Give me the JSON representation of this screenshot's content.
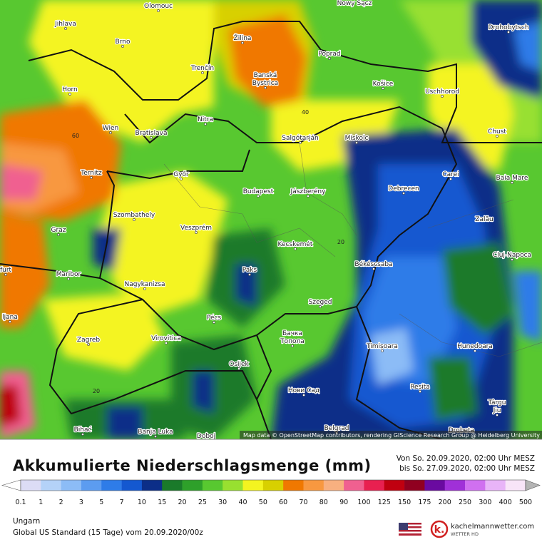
{
  "map": {
    "cities": [
      "Olomouc",
      "Nowy Sącz",
      "Jihlava",
      "Brno",
      "Žilina",
      "Drohobytsch",
      "Poprad",
      "Trenčín",
      "Banská",
      "Bystrica",
      "Horn",
      "Košice",
      "Uschhorod",
      "Wien",
      "Bratislava",
      "Nitra",
      "Salgótarján",
      "Miskolc",
      "Chust",
      "Ternitz",
      "Győr",
      "Carei",
      "Baia Mare",
      "Budapest",
      "Jászberény",
      "Debrecen",
      "Szombathely",
      "Zalău",
      "Graz",
      "Veszprém",
      "Kecskemét",
      "Cluj-Napoca",
      "Maribor",
      "Paks",
      "Békéscsaba",
      "Nagykanizsa",
      "Pécs",
      "Szeged",
      "Zagreb",
      "Virovitica",
      "Бачка",
      "Топола",
      "Timișoara",
      "Hunedoara",
      "Osijek",
      "Нови Сад",
      "Reșita",
      "Târgu",
      "Jiu",
      "Bihać",
      "Banja Luka",
      "Doboj",
      "Belgrad",
      "Drobeta",
      "ljana",
      "furt"
    ],
    "contour_labels": [
      "40",
      "60",
      "20",
      "20"
    ],
    "attribution": "Map data © OpenStreetMap contributors, rendering GIScience Research Group @ Heidelberg University"
  },
  "legend": {
    "title": "Akkumulierte Niederschlagsmenge (mm)",
    "period_from": "Von So. 20.09.2020, 02:00 Uhr MESZ",
    "period_to": "bis So. 27.09.2020, 02:00 Uhr MESZ",
    "ticks": [
      "0.1",
      "1",
      "2",
      "3",
      "5",
      "7",
      "10",
      "15",
      "20",
      "25",
      "30",
      "40",
      "50",
      "60",
      "70",
      "80",
      "90",
      "100",
      "125",
      "150",
      "175",
      "200",
      "250",
      "300",
      "400",
      "500"
    ],
    "colors": [
      "#dcdcf5",
      "#b4d2f8",
      "#8cbcf6",
      "#5c9cf0",
      "#2e7ce8",
      "#1458d0",
      "#0c2e88",
      "#1a7a2a",
      "#2ea02a",
      "#58c830",
      "#98e030",
      "#f4f420",
      "#d8d000",
      "#f07800",
      "#f89840",
      "#f8b080",
      "#f06090",
      "#e82050",
      "#c00010",
      "#900020",
      "#6a0aa0",
      "#a030d8",
      "#d070f0",
      "#e8b4f8",
      "#f8e4f8"
    ],
    "low_color": "#ffffff",
    "high_color": "#b4b4b4"
  },
  "footer": {
    "region": "Ungarn",
    "model": "Global US Standard (15 Tage) vom 20.09.2020/00z",
    "brand": "kachelmannwetter.com",
    "brand_sub": "WETTER HD"
  }
}
